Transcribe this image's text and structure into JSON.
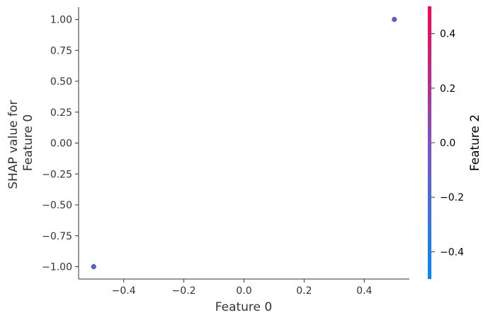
{
  "chart_data": {
    "type": "scatter",
    "title": "",
    "xlabel": "Feature 0",
    "ylabel_lines": [
      "SHAP value for",
      "Feature 0"
    ],
    "xlim": [
      -0.55,
      0.55
    ],
    "ylim": [
      -1.1,
      1.1
    ],
    "x_ticks": [
      -0.4,
      -0.2,
      0.0,
      0.2,
      0.4
    ],
    "x_tick_labels": [
      "−0.4",
      "−0.2",
      "0.0",
      "0.2",
      "0.4"
    ],
    "y_ticks": [
      1.0,
      0.75,
      0.5,
      0.25,
      0.0,
      -0.25,
      -0.5,
      -0.75,
      -1.0
    ],
    "y_tick_labels": [
      "1.00",
      "0.75",
      "0.50",
      "0.25",
      "0.00",
      "−0.25",
      "−0.50",
      "−0.75",
      "−1.00"
    ],
    "points": [
      {
        "x": -0.5,
        "y": -1.0,
        "color_value": -0.08
      },
      {
        "x": 0.5,
        "y": 1.0,
        "color_value": -0.08
      }
    ],
    "grid": false,
    "colorbar": {
      "label": "Feature 2",
      "range": [
        -0.5,
        0.5
      ],
      "ticks": [
        0.4,
        0.2,
        0.0,
        -0.2,
        -0.4
      ],
      "tick_labels": [
        "0.4",
        "0.2",
        "0.0",
        "−0.2",
        "−0.4"
      ],
      "colors": [
        "#008afb",
        "#7f52c2",
        "#ff0052"
      ]
    }
  }
}
